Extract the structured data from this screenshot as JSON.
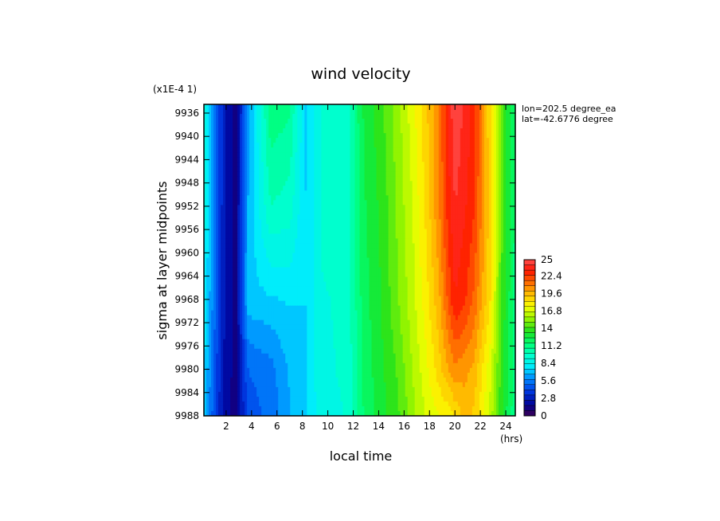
{
  "chart_data": {
    "type": "heatmap",
    "title": "wind velocity",
    "scale_note": "(x1E-4 1)",
    "xlabel": "local time",
    "xunit": "(hrs)",
    "ylabel": "sigma at layer midpoints",
    "xlim": [
      0.25,
      24.75
    ],
    "ylim": [
      9934.5,
      9988
    ],
    "y_inverted": true,
    "x_ticks": [
      "2",
      "4",
      "6",
      "8",
      "10",
      "12",
      "14",
      "16",
      "18",
      "20",
      "22",
      "24"
    ],
    "y_ticks": [
      "9936",
      "9940",
      "9944",
      "9948",
      "9952",
      "9956",
      "9960",
      "9964",
      "9968",
      "9972",
      "9976",
      "9980",
      "9984",
      "9988"
    ],
    "info": [
      "lon=202.5 degree_ea",
      "lat=-42.6776 degree"
    ],
    "colorbar": {
      "min": 0,
      "max": 25,
      "levels": 30,
      "tick_labels": [
        "25",
        "22.4",
        "19.6",
        "16.8",
        "14",
        "11.2",
        "8.4",
        "5.6",
        "2.8",
        "0"
      ]
    },
    "x": [
      0.25,
      1.75,
      2.75,
      3.75,
      5.5,
      7.0,
      8.25,
      9.5,
      11.5,
      12.75,
      14.25,
      15.5,
      16.75,
      17.75,
      18.75,
      19.5,
      20.0,
      20.75,
      21.5,
      22.75,
      23.75,
      24.75
    ],
    "y": [
      9934.5,
      9952,
      9968,
      9980,
      9988
    ],
    "z": [
      [
        8.8,
        3.0,
        1.2,
        6.2,
        11.5,
        11.0,
        7.4,
        9.3,
        9.6,
        12.5,
        14.0,
        15.5,
        17.3,
        19.0,
        21.0,
        23.5,
        25.0,
        24.0,
        23.0,
        18.5,
        14.0,
        11.5
      ],
      [
        8.8,
        3.0,
        1.2,
        6.8,
        10.0,
        9.6,
        7.5,
        9.3,
        9.5,
        12.3,
        13.6,
        15.2,
        16.8,
        18.6,
        20.8,
        23.0,
        24.2,
        23.5,
        22.6,
        18.8,
        14.2,
        11.5
      ],
      [
        8.4,
        2.8,
        1.3,
        7.2,
        7.4,
        7.6,
        7.5,
        9.1,
        9.3,
        12.0,
        13.4,
        14.9,
        16.5,
        18.0,
        19.8,
        22.0,
        23.3,
        22.7,
        21.5,
        18.5,
        13.8,
        11.3
      ],
      [
        7.6,
        2.5,
        1.3,
        5.0,
        5.5,
        6.8,
        7.4,
        9.0,
        9.3,
        11.8,
        13.2,
        14.3,
        16.0,
        17.3,
        18.8,
        20.0,
        20.6,
        20.3,
        19.8,
        17.0,
        13.5,
        11.2
      ],
      [
        7.0,
        2.4,
        1.1,
        4.6,
        5.2,
        6.6,
        7.3,
        8.9,
        9.2,
        11.6,
        13.0,
        14.0,
        15.6,
        16.8,
        17.5,
        17.8,
        18.5,
        19.5,
        19.0,
        16.5,
        13.2,
        11.0
      ]
    ]
  }
}
